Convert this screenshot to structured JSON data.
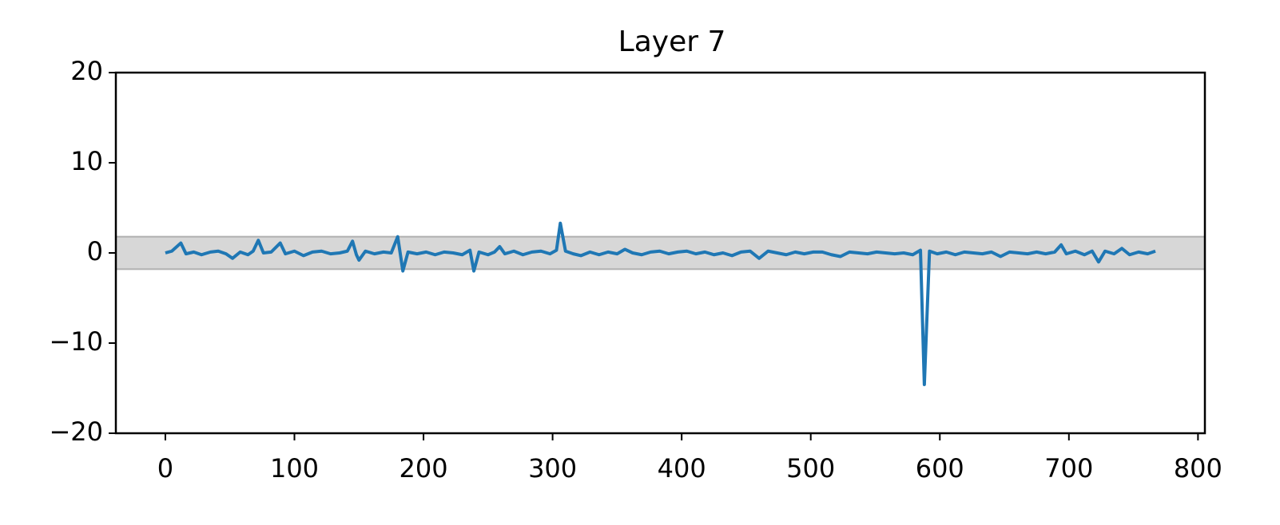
{
  "chart_data": {
    "type": "line",
    "title": "Layer 7",
    "x": [
      0,
      5,
      12,
      16,
      22,
      28,
      35,
      41,
      47,
      52,
      58,
      64,
      68,
      72,
      76,
      82,
      89,
      93,
      100,
      107,
      114,
      121,
      128,
      135,
      141,
      145,
      148,
      150,
      155,
      162,
      169,
      175,
      180,
      184,
      188,
      195,
      202,
      209,
      216,
      223,
      230,
      236,
      239,
      243,
      250,
      255,
      259,
      263,
      270,
      277,
      284,
      291,
      298,
      303,
      306,
      310,
      316,
      322,
      329,
      336,
      343,
      350,
      356,
      362,
      369,
      376,
      383,
      390,
      397,
      404,
      411,
      418,
      425,
      432,
      439,
      446,
      453,
      460,
      467,
      474,
      481,
      488,
      495,
      502,
      509,
      516,
      523,
      530,
      537,
      544,
      551,
      558,
      565,
      572,
      579,
      585,
      588,
      592,
      598,
      605,
      612,
      619,
      626,
      633,
      640,
      647,
      654,
      661,
      668,
      675,
      682,
      689,
      694,
      698,
      705,
      712,
      718,
      723,
      728,
      735,
      741,
      747,
      754,
      761,
      767
    ],
    "series": [
      {
        "name": "Layer 7",
        "color": "#1f77b4",
        "values": [
          0,
          0.2,
          1.1,
          -0.1,
          0.1,
          -0.2,
          0.1,
          0.2,
          -0.1,
          -0.6,
          0.1,
          -0.2,
          0.2,
          1.4,
          0.0,
          0.1,
          1.1,
          -0.1,
          0.2,
          -0.3,
          0.1,
          0.2,
          -0.1,
          0.0,
          0.2,
          1.3,
          -0.2,
          -0.8,
          0.2,
          -0.1,
          0.1,
          0.0,
          1.8,
          -2.0,
          0.1,
          -0.1,
          0.1,
          -0.2,
          0.1,
          0.0,
          -0.2,
          0.3,
          -2.0,
          0.1,
          -0.2,
          0.1,
          0.7,
          -0.1,
          0.2,
          -0.2,
          0.1,
          0.2,
          -0.1,
          0.3,
          3.3,
          0.2,
          -0.1,
          -0.3,
          0.1,
          -0.2,
          0.1,
          -0.1,
          0.4,
          0.0,
          -0.2,
          0.1,
          0.2,
          -0.1,
          0.1,
          0.2,
          -0.1,
          0.1,
          -0.2,
          0.0,
          -0.3,
          0.1,
          0.2,
          -0.6,
          0.2,
          0.0,
          -0.2,
          0.1,
          -0.1,
          0.1,
          0.1,
          -0.2,
          -0.4,
          0.1,
          0.0,
          -0.1,
          0.1,
          0.0,
          -0.1,
          0.0,
          -0.2,
          0.3,
          -14.6,
          0.2,
          -0.1,
          0.1,
          -0.2,
          0.1,
          0.0,
          -0.1,
          0.1,
          -0.4,
          0.1,
          0.0,
          -0.1,
          0.1,
          -0.1,
          0.1,
          0.9,
          -0.1,
          0.2,
          -0.2,
          0.2,
          -1.0,
          0.2,
          -0.1,
          0.5,
          -0.2,
          0.1,
          -0.1,
          0.2
        ]
      }
    ],
    "band": [
      -1.8,
      1.8
    ],
    "band_color": "#b0b0b0",
    "xlim": [
      -38.35,
      805.35
    ],
    "xticks": [
      0,
      100,
      200,
      300,
      400,
      500,
      600,
      700,
      800
    ],
    "ylim": [
      -20,
      20
    ],
    "yticks": [
      {
        "value": -20,
        "label": "−20"
      },
      {
        "value": -10,
        "label": "−10"
      },
      0,
      10,
      20
    ]
  }
}
